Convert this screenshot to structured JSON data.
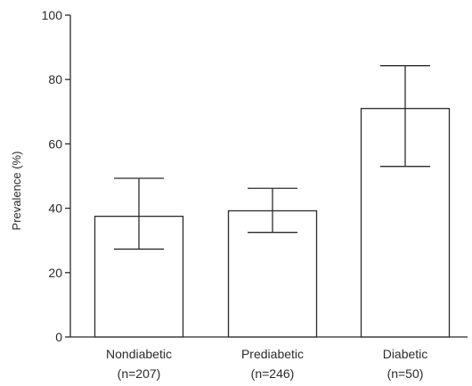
{
  "chart_data": {
    "type": "bar",
    "categories": [
      "Nondiabetic",
      "Prediabetic",
      "Diabetic"
    ],
    "category_sublabels": [
      "(n=207)",
      "(n=246)",
      "(n=50)"
    ],
    "values": [
      37.5,
      39.2,
      71.0
    ],
    "error_low": [
      27.3,
      32.5,
      53.0
    ],
    "error_high": [
      49.3,
      46.2,
      84.3
    ],
    "ylabel": "Prevalence (%)",
    "xlabel": "",
    "ylim": [
      0,
      100
    ],
    "yticks": [
      0,
      20,
      40,
      60,
      80,
      100
    ],
    "grid": false,
    "bar_fill": "#ffffff",
    "stroke_color": "#2b2b2b"
  }
}
